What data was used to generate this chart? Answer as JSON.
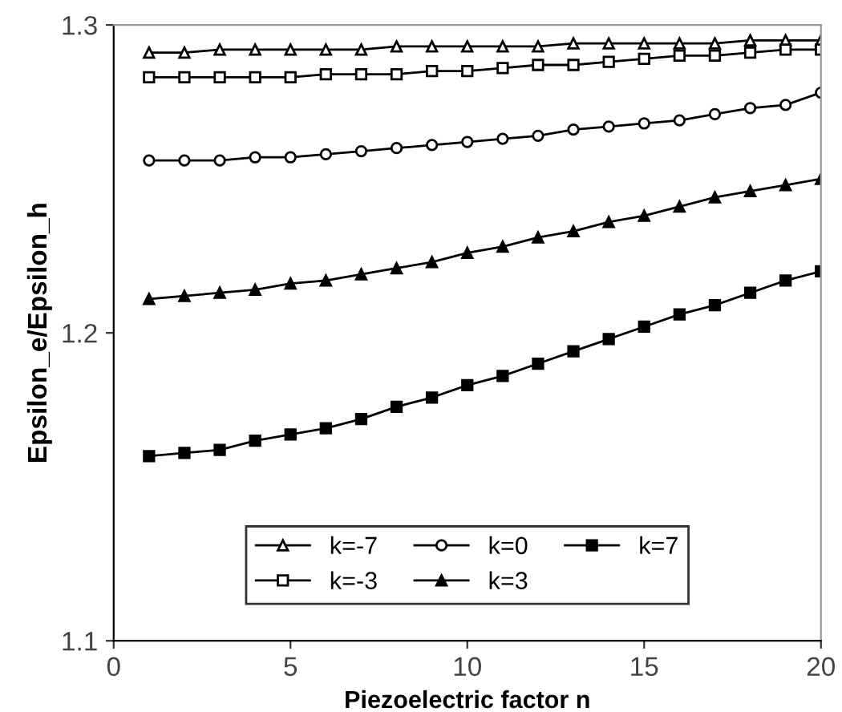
{
  "chart_data": {
    "type": "line",
    "xlabel": "Piezoelectric factor n",
    "ylabel": "Epsilon_e/Epsilon_h",
    "x": [
      1,
      2,
      3,
      4,
      5,
      6,
      7,
      8,
      9,
      10,
      11,
      12,
      13,
      14,
      15,
      16,
      17,
      18,
      19,
      20
    ],
    "xlim": [
      0,
      20
    ],
    "xticks": [
      0,
      5,
      10,
      15,
      20
    ],
    "ylim": [
      1.1,
      1.3
    ],
    "yticks": [
      1.1,
      1.2,
      1.3
    ],
    "grid": false,
    "legend": "bottom",
    "line_style": "solid",
    "series": [
      {
        "name": "k=-7",
        "color": "#000000",
        "marker": "triangle_open",
        "values": [
          1.291,
          1.291,
          1.292,
          1.292,
          1.292,
          1.292,
          1.292,
          1.293,
          1.293,
          1.293,
          1.293,
          1.293,
          1.294,
          1.294,
          1.294,
          1.294,
          1.294,
          1.295,
          1.295,
          1.295
        ]
      },
      {
        "name": "k=-3",
        "color": "#000000",
        "marker": "square_open",
        "values": [
          1.283,
          1.283,
          1.283,
          1.283,
          1.283,
          1.284,
          1.284,
          1.284,
          1.285,
          1.285,
          1.286,
          1.287,
          1.287,
          1.288,
          1.289,
          1.29,
          1.29,
          1.291,
          1.292,
          1.292
        ]
      },
      {
        "name": "k=0",
        "color": "#000000",
        "marker": "circle_open",
        "values": [
          1.256,
          1.256,
          1.256,
          1.257,
          1.257,
          1.258,
          1.259,
          1.26,
          1.261,
          1.262,
          1.263,
          1.264,
          1.266,
          1.267,
          1.268,
          1.269,
          1.271,
          1.273,
          1.274,
          1.278
        ]
      },
      {
        "name": "k=3",
        "color": "#000000",
        "marker": "triangle",
        "values": [
          1.211,
          1.212,
          1.213,
          1.214,
          1.216,
          1.217,
          1.219,
          1.221,
          1.223,
          1.226,
          1.228,
          1.231,
          1.233,
          1.236,
          1.238,
          1.241,
          1.244,
          1.246,
          1.248,
          1.25
        ]
      },
      {
        "name": "k=7",
        "color": "#000000",
        "marker": "square",
        "values": [
          1.16,
          1.161,
          1.162,
          1.165,
          1.167,
          1.169,
          1.172,
          1.176,
          1.179,
          1.183,
          1.186,
          1.19,
          1.194,
          1.198,
          1.202,
          1.206,
          1.209,
          1.213,
          1.217,
          1.22
        ]
      }
    ]
  }
}
